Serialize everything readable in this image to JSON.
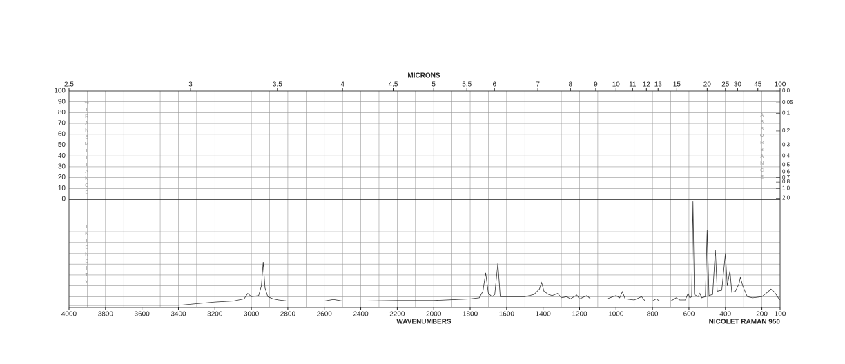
{
  "chart_data": {
    "type": "line",
    "top_axis_label": "MICRONS",
    "x_label": "WAVENUMBERS",
    "instrument": "NICOLET RAMAN 950",
    "y_label": "%TRANSMITTANCE",
    "lower_label": "INTENSITY",
    "y2_label": "ABSORBANCE",
    "xlim": [
      4000,
      100
    ],
    "xticks": [
      4000,
      3800,
      3600,
      3400,
      3200,
      3000,
      2800,
      2600,
      2400,
      2200,
      2000,
      1800,
      1600,
      1400,
      1200,
      1000,
      800,
      600,
      400,
      200,
      100
    ],
    "xgrid": [
      3900,
      3700,
      3500,
      3300,
      3100,
      2900,
      2700,
      2500,
      2300,
      2100,
      1900,
      1700,
      1500,
      1300,
      1100,
      900,
      700,
      500,
      300
    ],
    "micron_ticks": [
      2.5,
      3,
      3.5,
      4,
      4.5,
      5,
      5.5,
      6,
      7,
      8,
      9,
      10,
      11,
      12,
      13,
      15,
      20,
      25,
      30,
      45,
      100
    ],
    "ylim": [
      0,
      100
    ],
    "yticks": [
      0,
      10,
      20,
      30,
      40,
      50,
      60,
      70,
      80,
      90,
      100
    ],
    "y2ticks": [
      {
        "value": 0,
        "label": "0.0"
      },
      0.05,
      0.1,
      0.2,
      0.3,
      0.4,
      0.5,
      0.6,
      0.7,
      0.8,
      {
        "value": 1,
        "label": "1.0"
      },
      {
        "value": 2,
        "label": "2.0"
      }
    ],
    "intensity_lim": [
      0,
      100
    ],
    "color": "#333333",
    "grid": true,
    "series": [
      {
        "x": [
          4000,
          3600,
          3400,
          3200,
          3100,
          3040,
          3020,
          3000,
          2960,
          2945,
          2935,
          2925,
          2910,
          2880,
          2850,
          2800,
          2700,
          2600,
          2550,
          2500,
          2400,
          2200,
          2000,
          1800,
          1750,
          1730,
          1715,
          1700,
          1680,
          1665,
          1648,
          1635,
          1600,
          1500,
          1450,
          1420,
          1408,
          1395,
          1370,
          1350,
          1320,
          1300,
          1270,
          1250,
          1215,
          1200,
          1160,
          1140,
          1100,
          1050,
          1000,
          980,
          965,
          950,
          900,
          860,
          840,
          800,
          780,
          760,
          700,
          670,
          650,
          620,
          605,
          595,
          585,
          578,
          570,
          550,
          540,
          530,
          510,
          500,
          490,
          470,
          455,
          445,
          420,
          400,
          390,
          375,
          365,
          345,
          325,
          318,
          305,
          280,
          250,
          200,
          170,
          150,
          130,
          110,
          100
        ],
        "values": [
          2,
          2,
          2,
          5,
          6,
          8,
          13,
          10,
          11,
          20,
          42,
          18,
          10,
          8,
          7,
          6,
          6,
          6,
          7.5,
          6,
          6,
          6.5,
          6.5,
          8,
          9,
          15,
          32,
          13,
          10,
          12,
          41,
          10,
          10,
          10,
          12,
          17,
          23,
          15,
          12,
          11,
          13,
          9,
          10,
          8,
          11.5,
          8,
          11,
          8,
          8,
          8,
          11,
          9,
          14.6,
          8,
          7,
          10,
          6,
          6,
          8,
          6,
          6,
          9,
          7,
          7,
          13,
          9,
          10,
          98,
          12,
          10,
          13,
          9,
          10,
          72,
          11,
          12,
          53.5,
          15,
          16,
          50,
          20,
          34,
          14,
          15,
          22,
          28,
          20,
          10,
          9,
          10,
          14,
          17,
          14,
          9,
          7
        ]
      }
    ]
  }
}
